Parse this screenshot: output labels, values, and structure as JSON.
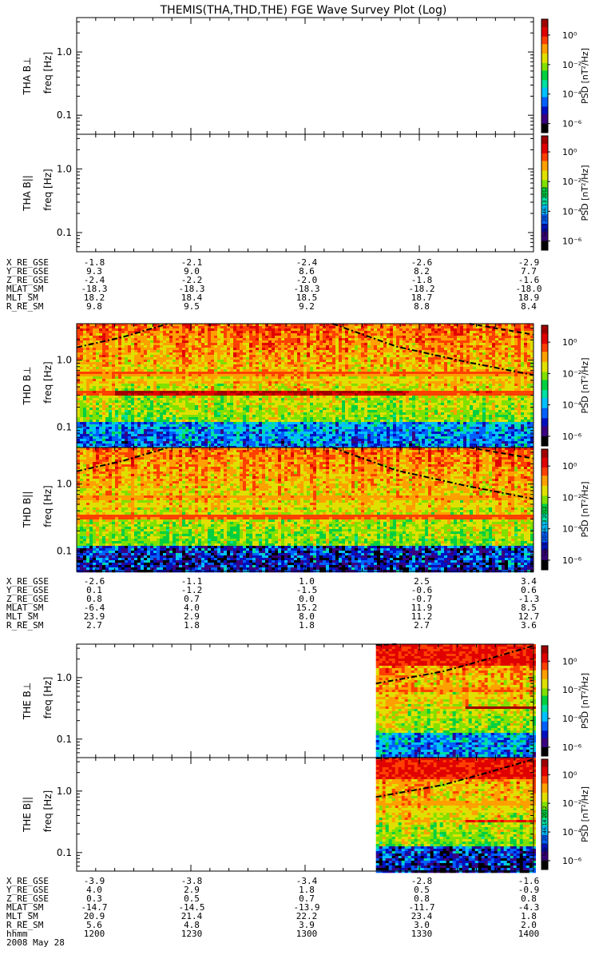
{
  "title": "THEMIS(THA,THD,THE) FGE Wave Survey Plot (Log)",
  "colors": {
    "scale": [
      "#000000",
      "#3a0080",
      "#0010c0",
      "#0060ff",
      "#00c0ff",
      "#00e0a0",
      "#00d040",
      "#80e000",
      "#e0e000",
      "#ffa000",
      "#ff4000",
      "#e00000",
      "#a00000"
    ]
  },
  "panels": [
    {
      "id": "tha-bperp",
      "label_top": "THA B⊥",
      "label_bot": "freq [Hz]",
      "has_data": false
    },
    {
      "id": "tha-bpar",
      "label_top": "THA B||",
      "label_bot": "freq [Hz]",
      "has_data": false,
      "stamp": "Mon Sep  3 20:46:13 2012"
    },
    {
      "id": "thd-bperp",
      "label_top": "THD B⊥",
      "label_bot": "freq [Hz]",
      "has_data": true
    },
    {
      "id": "thd-bpar",
      "label_top": "THD B||",
      "label_bot": "freq [Hz]",
      "has_data": true,
      "stamp": "Mon Sep  3 20:46:13 2012"
    },
    {
      "id": "the-bperp",
      "label_top": "THE B⊥",
      "label_bot": "freq [Hz]",
      "has_data": true
    },
    {
      "id": "the-bpar",
      "label_top": "THE B||",
      "label_bot": "freq [Hz]",
      "has_data": true,
      "stamp": "Mon Sep  3 20:46:14 2012"
    }
  ],
  "y_ticks": [
    "1.0",
    "0.1"
  ],
  "colorbar": {
    "ticks": [
      "10⁰",
      "10⁻²",
      "10⁻⁴",
      "10⁻⁶"
    ],
    "label": "PSD [nT²/Hz]"
  },
  "ephemeris": [
    {
      "rows": [
        {
          "name": "X_RE_GSE",
          "values": [
            "-1.8",
            "-2.1",
            "-2.4",
            "-2.6",
            "-2.9"
          ]
        },
        {
          "name": "Y_RE_GSE",
          "values": [
            "9.3",
            "9.0",
            "8.6",
            "8.2",
            "7.7"
          ]
        },
        {
          "name": "Z_RE_GSE",
          "values": [
            "-2.4",
            "-2.2",
            "-2.0",
            "-1.8",
            "-1.6"
          ]
        },
        {
          "name": "MLAT_SM",
          "values": [
            "-18.3",
            "-18.3",
            "-18.3",
            "-18.2",
            "-18.0"
          ]
        },
        {
          "name": "MLT_SM",
          "values": [
            "18.2",
            "18.4",
            "18.5",
            "18.7",
            "18.9"
          ]
        },
        {
          "name": "R_RE_SM",
          "values": [
            "9.8",
            "9.5",
            "9.2",
            "8.8",
            "8.4"
          ]
        }
      ]
    },
    {
      "rows": [
        {
          "name": "X_RE_GSE",
          "values": [
            "-2.6",
            "-1.1",
            "1.0",
            "2.5",
            "3.4"
          ]
        },
        {
          "name": "Y_RE_GSE",
          "values": [
            "0.1",
            "-1.2",
            "-1.5",
            "-0.6",
            "0.6"
          ]
        },
        {
          "name": "Z_RE_GSE",
          "values": [
            "0.8",
            "0.7",
            "0.0",
            "-0.7",
            "-1.3"
          ]
        },
        {
          "name": "MLAT_SM",
          "values": [
            "-6.4",
            "4.0",
            "15.2",
            "11.9",
            "8.5"
          ]
        },
        {
          "name": "MLT_SM",
          "values": [
            "23.9",
            "2.9",
            "8.0",
            "11.2",
            "12.7"
          ]
        },
        {
          "name": "R_RE_SM",
          "values": [
            "2.7",
            "1.8",
            "1.8",
            "2.7",
            "3.6"
          ]
        }
      ]
    },
    {
      "rows": [
        {
          "name": "X_RE_GSE",
          "values": [
            "-3.9",
            "-3.8",
            "-3.4",
            "-2.8",
            "-1.6"
          ]
        },
        {
          "name": "Y_RE_GSE",
          "values": [
            "4.0",
            "2.9",
            "1.8",
            "0.5",
            "-0.9"
          ]
        },
        {
          "name": "Z_RE_GSE",
          "values": [
            "0.3",
            "0.5",
            "0.7",
            "0.8",
            "0.8"
          ]
        },
        {
          "name": "MLAT_SM",
          "values": [
            "-14.7",
            "-14.5",
            "-13.9",
            "-11.7",
            "-4.3"
          ]
        },
        {
          "name": "MLT_SM",
          "values": [
            "20.9",
            "21.4",
            "22.2",
            "23.4",
            "1.8"
          ]
        },
        {
          "name": "R_RE_SM",
          "values": [
            "5.6",
            "4.8",
            "3.9",
            "3.0",
            "2.0"
          ]
        },
        {
          "name": "hhmm",
          "values": [
            "1200",
            "1230",
            "1300",
            "1330",
            "1400"
          ]
        }
      ],
      "date": "2008 May 28"
    }
  ],
  "chart_data": {
    "type": "heatmap",
    "title": "THEMIS(THA,THD,THE) FGE Wave Survey Plot (Log)",
    "x_unit": "hhmm",
    "x_ticks": [
      "1200",
      "1230",
      "1300",
      "1330",
      "1400"
    ],
    "date": "2008 May 28",
    "yscale": "log",
    "ylabel": "freq [Hz]",
    "ylim": [
      0.05,
      3.5
    ],
    "colorbar_label": "PSD [nT²/Hz]",
    "colorbar_scale": "log",
    "colorbar_range": [
      1e-07,
      10.0
    ],
    "series": [
      {
        "name": "THA B⊥",
        "data_coverage": []
      },
      {
        "name": "THA B||",
        "data_coverage": []
      },
      {
        "name": "THD B⊥",
        "data_coverage": [
          [
            1200,
            1400
          ]
        ],
        "bands_hz": [
          0.33,
          0.66
        ],
        "dominant_band_log10_psd": 0.5
      },
      {
        "name": "THD B||",
        "data_coverage": [
          [
            1200,
            1400
          ]
        ],
        "bands_hz": [
          0.33,
          0.66
        ]
      },
      {
        "name": "THE B⊥",
        "data_coverage": [
          [
            1330,
            1400
          ]
        ],
        "bands_hz": [
          0.33,
          0.5
        ]
      },
      {
        "name": "THE B||",
        "data_coverage": [
          [
            1330,
            1400
          ]
        ],
        "bands_hz": [
          0.3,
          0.5
        ]
      }
    ]
  }
}
